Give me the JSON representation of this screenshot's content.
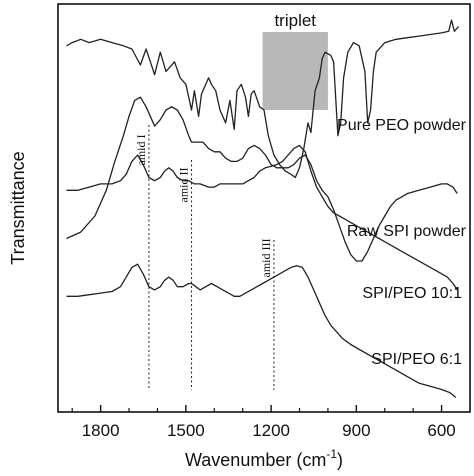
{
  "chart_data": {
    "type": "line",
    "title": "",
    "xlabel": "Wavenumber (cm",
    "xlabel_superscript": "-1",
    "xlabel_suffix": ")",
    "ylabel": "Transmittance",
    "xlim": [
      1950,
      500
    ],
    "x_reversed": true,
    "xticks": [
      1800,
      1500,
      1200,
      900,
      600
    ],
    "yticks_shown": false,
    "grid": false,
    "legend": "none",
    "line_color": "#222222",
    "highlight": {
      "label": "triplet",
      "x_range": [
        1230,
        1000
      ],
      "color": "#b8b8b8"
    },
    "annotations": [
      {
        "label": "amid I",
        "x": 1630
      },
      {
        "label": "amid II",
        "x": 1480
      },
      {
        "label": "amid III",
        "x": 1190
      }
    ],
    "series": [
      {
        "name": "Pure PEO powder",
        "points": [
          [
            1920,
            0.72
          ],
          [
            1900,
            0.73
          ],
          [
            1870,
            0.74
          ],
          [
            1840,
            0.73
          ],
          [
            1800,
            0.74
          ],
          [
            1760,
            0.73
          ],
          [
            1720,
            0.72
          ],
          [
            1690,
            0.71
          ],
          [
            1660,
            0.66
          ],
          [
            1640,
            0.71
          ],
          [
            1610,
            0.63
          ],
          [
            1590,
            0.7
          ],
          [
            1570,
            0.64
          ],
          [
            1540,
            0.67
          ],
          [
            1520,
            0.62
          ],
          [
            1500,
            0.6
          ],
          [
            1480,
            0.52
          ],
          [
            1470,
            0.58
          ],
          [
            1455,
            0.5
          ],
          [
            1445,
            0.57
          ],
          [
            1420,
            0.62
          ],
          [
            1410,
            0.6
          ],
          [
            1395,
            0.58
          ],
          [
            1380,
            0.52
          ],
          [
            1360,
            0.48
          ],
          [
            1345,
            0.55
          ],
          [
            1330,
            0.46
          ],
          [
            1320,
            0.58
          ],
          [
            1305,
            0.6
          ],
          [
            1290,
            0.56
          ],
          [
            1280,
            0.5
          ],
          [
            1270,
            0.57
          ],
          [
            1260,
            0.58
          ],
          [
            1240,
            0.53
          ],
          [
            1225,
            0.52
          ],
          [
            1210,
            0.44
          ],
          [
            1190,
            0.38
          ],
          [
            1170,
            0.35
          ],
          [
            1150,
            0.33
          ],
          [
            1130,
            0.32
          ],
          [
            1115,
            0.31
          ],
          [
            1100,
            0.34
          ],
          [
            1085,
            0.4
          ],
          [
            1070,
            0.48
          ],
          [
            1060,
            0.45
          ],
          [
            1045,
            0.58
          ],
          [
            1030,
            0.62
          ],
          [
            1020,
            0.68
          ],
          [
            1010,
            0.7
          ],
          [
            990,
            0.69
          ],
          [
            980,
            0.67
          ],
          [
            965,
            0.44
          ],
          [
            955,
            0.48
          ],
          [
            945,
            0.62
          ],
          [
            930,
            0.7
          ],
          [
            910,
            0.73
          ],
          [
            890,
            0.72
          ],
          [
            870,
            0.64
          ],
          [
            860,
            0.48
          ],
          [
            850,
            0.52
          ],
          [
            840,
            0.64
          ],
          [
            830,
            0.7
          ],
          [
            800,
            0.73
          ],
          [
            760,
            0.74
          ],
          [
            720,
            0.745
          ],
          [
            680,
            0.75
          ],
          [
            640,
            0.755
          ],
          [
            600,
            0.76
          ],
          [
            575,
            0.765
          ],
          [
            565,
            0.8
          ],
          [
            555,
            0.765
          ],
          [
            540,
            0.78
          ]
        ]
      },
      {
        "name": "Raw SPI powder",
        "points": [
          [
            1920,
            0.12
          ],
          [
            1870,
            0.14
          ],
          [
            1820,
            0.19
          ],
          [
            1780,
            0.27
          ],
          [
            1750,
            0.36
          ],
          [
            1720,
            0.44
          ],
          [
            1700,
            0.5
          ],
          [
            1680,
            0.55
          ],
          [
            1660,
            0.56
          ],
          [
            1640,
            0.53
          ],
          [
            1620,
            0.49
          ],
          [
            1610,
            0.47
          ],
          [
            1590,
            0.49
          ],
          [
            1570,
            0.52
          ],
          [
            1550,
            0.53
          ],
          [
            1530,
            0.52
          ],
          [
            1510,
            0.49
          ],
          [
            1490,
            0.44
          ],
          [
            1480,
            0.42
          ],
          [
            1460,
            0.42
          ],
          [
            1440,
            0.42
          ],
          [
            1420,
            0.4
          ],
          [
            1400,
            0.39
          ],
          [
            1380,
            0.39
          ],
          [
            1360,
            0.37
          ],
          [
            1340,
            0.36
          ],
          [
            1320,
            0.36
          ],
          [
            1300,
            0.37
          ],
          [
            1280,
            0.4
          ],
          [
            1260,
            0.41
          ],
          [
            1240,
            0.4
          ],
          [
            1220,
            0.38
          ],
          [
            1200,
            0.35
          ],
          [
            1180,
            0.34
          ],
          [
            1160,
            0.34
          ],
          [
            1140,
            0.34
          ],
          [
            1120,
            0.35
          ],
          [
            1100,
            0.37
          ],
          [
            1080,
            0.38
          ],
          [
            1060,
            0.35
          ],
          [
            1040,
            0.3
          ],
          [
            1020,
            0.27
          ],
          [
            1000,
            0.25
          ],
          [
            980,
            0.21
          ],
          [
            960,
            0.16
          ],
          [
            940,
            0.11
          ],
          [
            920,
            0.07
          ],
          [
            900,
            0.05
          ],
          [
            880,
            0.05
          ],
          [
            860,
            0.08
          ],
          [
            840,
            0.12
          ],
          [
            820,
            0.16
          ],
          [
            800,
            0.19
          ],
          [
            780,
            0.22
          ],
          [
            760,
            0.24
          ],
          [
            740,
            0.25
          ],
          [
            720,
            0.26
          ],
          [
            700,
            0.265
          ],
          [
            680,
            0.27
          ],
          [
            660,
            0.275
          ],
          [
            640,
            0.28
          ],
          [
            620,
            0.285
          ],
          [
            600,
            0.29
          ],
          [
            580,
            0.29
          ],
          [
            560,
            0.28
          ],
          [
            545,
            0.26
          ]
        ]
      },
      {
        "name": "SPI/PEO 10:1",
        "points": [
          [
            1920,
            0.27
          ],
          [
            1880,
            0.27
          ],
          [
            1840,
            0.28
          ],
          [
            1800,
            0.29
          ],
          [
            1760,
            0.29
          ],
          [
            1730,
            0.3
          ],
          [
            1710,
            0.32
          ],
          [
            1690,
            0.36
          ],
          [
            1670,
            0.38
          ],
          [
            1650,
            0.35
          ],
          [
            1630,
            0.31
          ],
          [
            1610,
            0.3
          ],
          [
            1590,
            0.31
          ],
          [
            1575,
            0.33
          ],
          [
            1560,
            0.34
          ],
          [
            1545,
            0.33
          ],
          [
            1530,
            0.31
          ],
          [
            1510,
            0.3
          ],
          [
            1490,
            0.3
          ],
          [
            1470,
            0.29
          ],
          [
            1450,
            0.29
          ],
          [
            1420,
            0.28
          ],
          [
            1400,
            0.28
          ],
          [
            1380,
            0.29
          ],
          [
            1350,
            0.29
          ],
          [
            1320,
            0.29
          ],
          [
            1300,
            0.29
          ],
          [
            1280,
            0.3
          ],
          [
            1260,
            0.31
          ],
          [
            1240,
            0.33
          ],
          [
            1220,
            0.34
          ],
          [
            1200,
            0.345
          ],
          [
            1180,
            0.35
          ],
          [
            1160,
            0.36
          ],
          [
            1140,
            0.38
          ],
          [
            1120,
            0.4
          ],
          [
            1100,
            0.41
          ],
          [
            1080,
            0.39
          ],
          [
            1060,
            0.33
          ],
          [
            1040,
            0.28
          ],
          [
            1020,
            0.25
          ],
          [
            1000,
            0.22
          ],
          [
            980,
            0.2
          ],
          [
            960,
            0.19
          ],
          [
            940,
            0.18
          ],
          [
            900,
            0.16
          ],
          [
            860,
            0.14
          ],
          [
            820,
            0.12
          ],
          [
            780,
            0.1
          ],
          [
            740,
            0.08
          ],
          [
            700,
            0.06
          ],
          [
            660,
            0.04
          ],
          [
            620,
            0.02
          ],
          [
            580,
            0.0
          ],
          [
            560,
            -0.02
          ],
          [
            545,
            -0.04
          ]
        ]
      },
      {
        "name": "SPI/PEO 6:1",
        "points": [
          [
            1920,
            -0.06
          ],
          [
            1880,
            -0.06
          ],
          [
            1840,
            -0.055
          ],
          [
            1800,
            -0.05
          ],
          [
            1760,
            -0.045
          ],
          [
            1730,
            -0.03
          ],
          [
            1710,
            0.0
          ],
          [
            1690,
            0.03
          ],
          [
            1670,
            0.04
          ],
          [
            1650,
            0.01
          ],
          [
            1630,
            -0.03
          ],
          [
            1610,
            -0.04
          ],
          [
            1590,
            -0.03
          ],
          [
            1575,
            -0.01
          ],
          [
            1560,
            0.0
          ],
          [
            1545,
            -0.01
          ],
          [
            1530,
            -0.03
          ],
          [
            1510,
            -0.03
          ],
          [
            1490,
            -0.02
          ],
          [
            1480,
            -0.02
          ],
          [
            1465,
            -0.03
          ],
          [
            1450,
            -0.04
          ],
          [
            1430,
            -0.03
          ],
          [
            1410,
            -0.02
          ],
          [
            1390,
            -0.03
          ],
          [
            1370,
            -0.04
          ],
          [
            1350,
            -0.05
          ],
          [
            1330,
            -0.06
          ],
          [
            1310,
            -0.06
          ],
          [
            1290,
            -0.05
          ],
          [
            1270,
            -0.04
          ],
          [
            1250,
            -0.03
          ],
          [
            1230,
            -0.02
          ],
          [
            1210,
            -0.01
          ],
          [
            1190,
            0.0
          ],
          [
            1170,
            0.01
          ],
          [
            1150,
            0.02
          ],
          [
            1130,
            0.03
          ],
          [
            1110,
            0.035
          ],
          [
            1090,
            0.03
          ],
          [
            1070,
            0.0
          ],
          [
            1050,
            -0.04
          ],
          [
            1030,
            -0.08
          ],
          [
            1010,
            -0.12
          ],
          [
            990,
            -0.15
          ],
          [
            970,
            -0.17
          ],
          [
            950,
            -0.19
          ],
          [
            920,
            -0.21
          ],
          [
            880,
            -0.23
          ],
          [
            840,
            -0.25
          ],
          [
            800,
            -0.27
          ],
          [
            760,
            -0.29
          ],
          [
            720,
            -0.31
          ],
          [
            680,
            -0.33
          ],
          [
            640,
            -0.34
          ],
          [
            600,
            -0.35
          ],
          [
            570,
            -0.36
          ],
          [
            550,
            -0.375
          ]
        ]
      }
    ]
  }
}
